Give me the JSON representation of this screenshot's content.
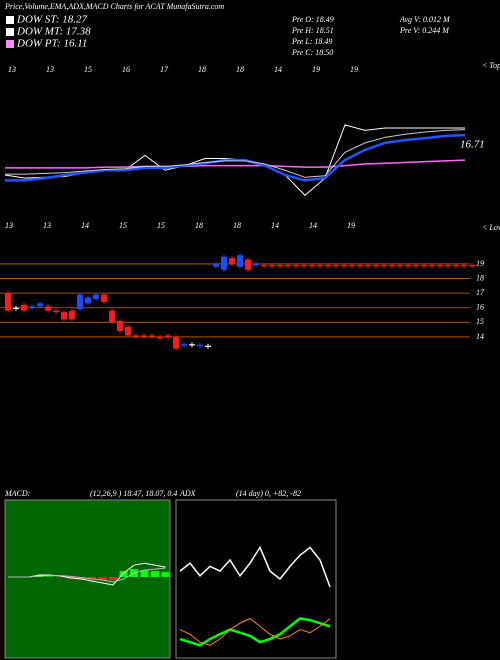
{
  "header": {
    "title": "Price,Volume,EMA,ADX,MACD Charts for ACAT MunafaSutra.com",
    "dow": [
      {
        "label": "DOW ST: 18.27",
        "color": "#ffffff"
      },
      {
        "label": "DOW MT: 17.38",
        "color": "#ffffff"
      },
      {
        "label": "DOW PT: 16.11",
        "color": "#ff88ff"
      }
    ],
    "stats": [
      "Pre O: 18.49",
      "Pre H: 18.51",
      "Pre L: 18.49",
      "Pre C: 18.50",
      "Avg V: 0.012 M",
      "Pre V: 0.244 M"
    ]
  },
  "chart_data": [
    {
      "type": "line",
      "ylim": [
        6.5,
        27.6
      ],
      "annotation": "16.71",
      "edge_label": "< Tops",
      "x_labels_top": [
        "13",
        "13",
        "15",
        "16",
        "17",
        "18",
        "18",
        "14",
        "19",
        "19"
      ],
      "x_labels_bottom": [
        "13",
        "13",
        "14",
        "15",
        "15",
        "18",
        "18",
        "14",
        "14",
        "19"
      ],
      "series": [
        {
          "color": "#ffffff",
          "width": 1,
          "values": [
            12.9,
            12.5,
            12.6,
            12.7,
            13.2,
            13.5,
            13.5,
            15.4,
            13.5,
            14.1,
            15.0,
            15.0,
            14.8,
            14.1,
            12.9,
            10.3,
            12.5,
            19.3,
            18.6,
            18.9,
            18.9,
            18.9,
            18.9,
            18.9
          ]
        },
        {
          "color": "#ff66ff",
          "width": 1.5,
          "values": [
            13.8,
            13.8,
            13.8,
            13.8,
            13.8,
            13.9,
            13.9,
            14.0,
            14.0,
            14.0,
            14.1,
            14.1,
            14.1,
            14.1,
            14.0,
            13.9,
            13.9,
            14.1,
            14.3,
            14.4,
            14.5,
            14.6,
            14.7,
            14.8
          ]
        },
        {
          "color": "#2255ff",
          "width": 2.5,
          "values": [
            12.2,
            12.2,
            12.5,
            12.9,
            13.2,
            13.5,
            13.5,
            13.8,
            13.8,
            14.1,
            14.4,
            14.8,
            14.8,
            14.1,
            12.9,
            12.2,
            12.5,
            14.8,
            16.1,
            17.0,
            17.35,
            17.6,
            17.9,
            18.0
          ]
        },
        {
          "color": "#cccccc",
          "width": 1,
          "values": [
            13.0,
            13.0,
            13.1,
            13.2,
            13.4,
            13.6,
            13.7,
            14.0,
            14.0,
            14.2,
            14.5,
            14.7,
            14.7,
            14.3,
            13.5,
            12.6,
            12.8,
            15.8,
            17.0,
            17.7,
            18.1,
            18.4,
            18.6,
            18.7
          ]
        }
      ]
    },
    {
      "type": "candlestick",
      "ylim": [
        12.42,
        20.64
      ],
      "yticks": [
        19,
        18,
        17,
        16,
        15,
        14
      ],
      "edge_label": "< Lows",
      "colors": {
        "up": "#1a4dff",
        "down": "#ff1a1a",
        "flat": "#ffffff",
        "grid": "#cc6600"
      },
      "open": [
        17.0,
        16.0,
        16.2,
        16.0,
        16.1,
        16.1,
        15.8,
        15.7,
        15.8,
        15.9,
        16.3,
        16.6,
        16.9,
        15.8,
        15.1,
        14.7,
        14.1,
        14.1,
        14.1,
        14.0,
        14.1,
        14.0,
        13.4,
        13.5,
        13.4,
        13.4,
        18.8,
        18.6,
        19.4,
        18.8,
        19.3,
        18.9,
        18.92,
        18.92,
        18.92,
        18.92,
        18.92,
        18.92,
        18.92,
        18.92,
        18.92,
        18.92,
        18.92,
        18.92,
        18.92,
        18.92,
        18.92,
        18.92,
        18.92,
        18.92,
        18.92,
        18.92,
        18.92,
        18.92,
        18.92,
        18.92,
        18.92,
        18.92,
        18.92
      ],
      "close": [
        15.8,
        16.0,
        15.8,
        16.1,
        16.3,
        15.8,
        15.7,
        15.2,
        15.2,
        16.9,
        16.7,
        16.9,
        16.4,
        15.0,
        14.4,
        14.1,
        14.0,
        14.05,
        14.0,
        13.9,
        14.0,
        13.2,
        13.5,
        13.5,
        13.45,
        13.4,
        19.0,
        19.5,
        19.0,
        19.6,
        18.6,
        19.0,
        18.88,
        18.88,
        18.88,
        18.88,
        18.88,
        18.88,
        18.88,
        18.88,
        18.88,
        18.88,
        18.88,
        18.88,
        18.88,
        18.88,
        18.88,
        18.88,
        18.88,
        18.88,
        18.88,
        18.88,
        18.88,
        18.88,
        18.88,
        18.88,
        18.88,
        18.88,
        18.88
      ]
    },
    {
      "type": "macd",
      "title": "MACD:",
      "subtitle": "(12,26,9 ) 18.47, 18.07, 0.4",
      "ylim": [
        -4.1,
        3.9
      ],
      "series": [
        {
          "color": "#ffffff",
          "values": [
            0,
            0,
            0,
            0.1,
            0.1,
            0.05,
            -0.05,
            -0.1,
            -0.2,
            -0.3,
            -0.4,
            0.2,
            0.6,
            0.7,
            0.6,
            0.5
          ]
        },
        {
          "color": "#bbbbbb",
          "values": [
            0,
            0,
            0,
            0.05,
            0.08,
            0.07,
            0.03,
            -0.03,
            -0.1,
            -0.15,
            -0.25,
            -0.1,
            0.2,
            0.35,
            0.4,
            0.45
          ]
        }
      ],
      "histogram": {
        "up": "#00ff00",
        "down": "#ff2222",
        "values": [
          0,
          0,
          0,
          0.05,
          0.02,
          -0.02,
          -0.08,
          -0.07,
          -0.1,
          -0.15,
          -0.15,
          0.3,
          0.4,
          0.35,
          0.3,
          0.25
        ]
      }
    },
    {
      "type": "adx",
      "title": "ADX",
      "subtitle": "(14 day) 0, +82, -82",
      "ylim": [
        0,
        100
      ],
      "series": [
        {
          "color": "#ffffff",
          "width": 1.5,
          "values": [
            55,
            60,
            52,
            58,
            55,
            62,
            52,
            60,
            70,
            55,
            50,
            58,
            65,
            70,
            62,
            45
          ]
        },
        {
          "color": "#00ff00",
          "width": 2.5,
          "values": [
            12,
            10,
            8,
            12,
            15,
            18,
            16,
            14,
            10,
            12,
            15,
            20,
            25,
            24,
            22,
            20
          ]
        },
        {
          "color": "#ff8800",
          "width": 1,
          "values": [
            18,
            15,
            10,
            8,
            12,
            18,
            22,
            25,
            20,
            15,
            12,
            14,
            18,
            16,
            20,
            25
          ]
        }
      ]
    }
  ]
}
